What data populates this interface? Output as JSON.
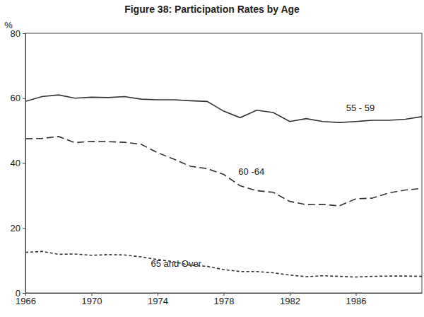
{
  "chart_data": {
    "type": "line",
    "title": "Figure 38: Participation Rates by Age",
    "y_label": "%",
    "x": [
      1966,
      1967,
      1968,
      1969,
      1970,
      1971,
      1972,
      1973,
      1974,
      1975,
      1976,
      1977,
      1978,
      1979,
      1980,
      1981,
      1982,
      1983,
      1984,
      1985,
      1986,
      1987,
      1988,
      1989,
      1990
    ],
    "series": [
      {
        "name": "55 - 59",
        "color": "#333333",
        "line_style": "solid",
        "values": [
          59,
          60.5,
          61,
          60,
          60.3,
          60.2,
          60.5,
          59.7,
          59.5,
          59.5,
          59.2,
          59,
          56,
          54,
          56.3,
          55.6,
          52.8,
          53.7,
          52.8,
          52.5,
          52.8,
          53.2,
          53.2,
          53.5,
          54.3
        ]
      },
      {
        "name": "60 -64",
        "color": "#333333",
        "line_style": "dashed",
        "values": [
          47.5,
          47.6,
          48.2,
          46.3,
          46.7,
          46.6,
          46.4,
          45.8,
          43.2,
          41.2,
          39,
          38.3,
          36.5,
          33,
          31.5,
          31,
          28.2,
          27.2,
          27.3,
          26.8,
          29,
          29.2,
          30.8,
          31.7,
          32.2
        ]
      },
      {
        "name": "65 and Over",
        "color": "#333333",
        "line_style": "dotted",
        "values": [
          12.5,
          12.8,
          11.9,
          12,
          11.6,
          11.8,
          11.7,
          11.1,
          10.3,
          9.6,
          8.5,
          8.2,
          7.2,
          6.6,
          6.6,
          6.2,
          5.5,
          5.0,
          5.3,
          5.1,
          4.9,
          5.1,
          5.2,
          5.2,
          5.1
        ]
      }
    ],
    "xlim": [
      1966,
      1990
    ],
    "xticks": [
      1966,
      1970,
      1974,
      1978,
      1982,
      1986
    ],
    "ylim": [
      0,
      80
    ],
    "yticks": [
      0,
      20,
      40,
      60,
      80
    ],
    "grid": false
  }
}
